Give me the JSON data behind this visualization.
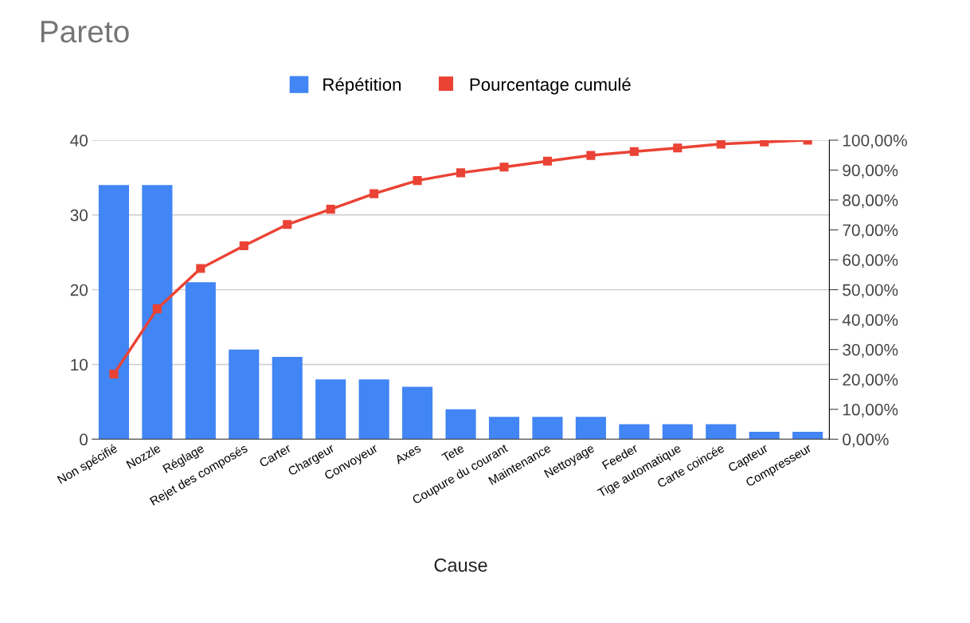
{
  "chart_data": {
    "type": "bar",
    "title": "Pareto",
    "xlabel": "Cause",
    "categories": [
      "Non spécifié",
      "Nozzle",
      "Réglage",
      "Rejet des composés",
      "Carter",
      "Chargeur",
      "Convoyeur",
      "Axes",
      "Tete",
      "Coupure du courant",
      "Maintenance",
      "Nettoyage",
      "Feeder",
      "Tige automatique",
      "Carte coincée",
      "Capteur",
      "Compresseur"
    ],
    "series": [
      {
        "name": "Répétition",
        "color": "#4285f4",
        "values": [
          34,
          34,
          21,
          12,
          11,
          8,
          8,
          7,
          4,
          3,
          3,
          3,
          2,
          2,
          2,
          1,
          1
        ]
      },
      {
        "name": "Pourcentage cumulé",
        "type": "line",
        "axis": "y2",
        "color": "#ea4335",
        "marker": "square",
        "values": [
          21.8,
          43.6,
          57.1,
          64.7,
          71.8,
          76.9,
          82.1,
          86.5,
          89.1,
          91,
          93,
          94.9,
          96.2,
          97.4,
          98.7,
          99.4,
          100
        ]
      }
    ],
    "ylim": [
      0,
      40
    ],
    "yticks": [
      0,
      10,
      20,
      30,
      40
    ],
    "y2lim": [
      0,
      100
    ],
    "y2ticks": [
      {
        "value": 0,
        "label": "0,00%"
      },
      {
        "value": 10,
        "label": "10,00%"
      },
      {
        "value": 20,
        "label": "20,00%"
      },
      {
        "value": 30,
        "label": "30,00%"
      },
      {
        "value": 40,
        "label": "40,00%"
      },
      {
        "value": 50,
        "label": "50,00%"
      },
      {
        "value": 60,
        "label": "60,00%"
      },
      {
        "value": 70,
        "label": "70,00%"
      },
      {
        "value": 80,
        "label": "80,00%"
      },
      {
        "value": 90,
        "label": "90,00%"
      },
      {
        "value": 100,
        "label": "100,00%"
      }
    ],
    "grid": "y",
    "legend": "top"
  }
}
